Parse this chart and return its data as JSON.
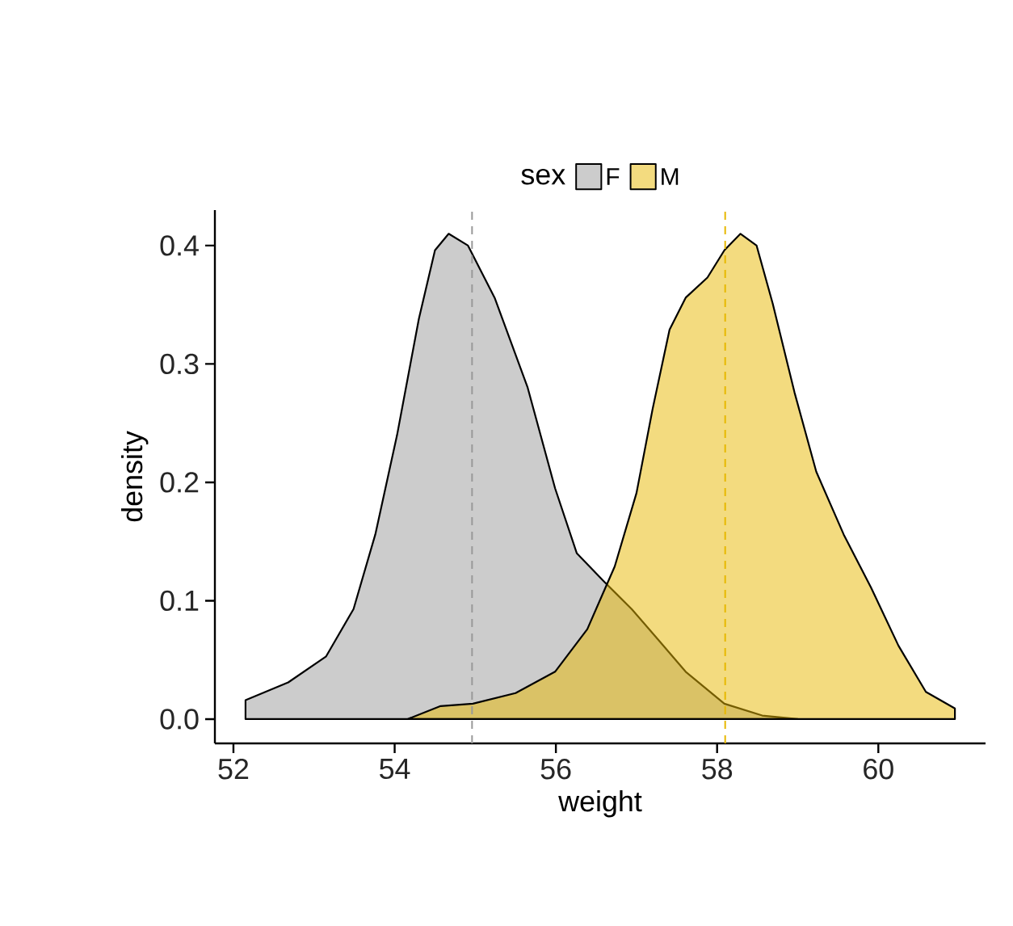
{
  "chart_data": {
    "type": "area",
    "xlabel": "weight",
    "ylabel": "density",
    "legend_title": "sex",
    "legend": "top",
    "xlim": [
      51.77,
      61.33
    ],
    "ylim": [
      -0.0205,
      0.43
    ],
    "xticks": [
      52,
      54,
      56,
      58,
      60
    ],
    "yticks": [
      {
        "value": 0,
        "label": "0.0"
      },
      {
        "value": 0.1,
        "label": "0.1"
      },
      {
        "value": 0.2,
        "label": "0.2"
      },
      {
        "value": 0.3,
        "label": "0.3"
      },
      {
        "value": 0.4,
        "label": "0.4"
      }
    ],
    "series": [
      {
        "name": "F",
        "color": "#999999",
        "x": [
          52.15,
          52.68,
          53.15,
          53.49,
          53.76,
          54.03,
          54.3,
          54.5,
          54.67,
          54.91,
          55.24,
          55.65,
          55.99,
          56.26,
          56.6,
          56.94,
          57.27,
          57.61,
          58.09,
          58.56,
          59.0
        ],
        "values": [
          0.016,
          0.031,
          0.053,
          0.093,
          0.156,
          0.24,
          0.338,
          0.396,
          0.41,
          0.4,
          0.356,
          0.28,
          0.195,
          0.14,
          0.116,
          0.093,
          0.067,
          0.04,
          0.013,
          0.003,
          0.0
        ]
      },
      {
        "name": "M",
        "color": "#E7B800",
        "x": [
          54.16,
          54.57,
          54.97,
          55.5,
          55.99,
          56.39,
          56.73,
          57.0,
          57.2,
          57.41,
          57.61,
          57.88,
          58.09,
          58.29,
          58.49,
          58.69,
          58.96,
          59.23,
          59.57,
          59.91,
          60.25,
          60.59,
          60.95
        ],
        "values": [
          0.0,
          0.011,
          0.013,
          0.022,
          0.04,
          0.076,
          0.129,
          0.191,
          0.262,
          0.329,
          0.356,
          0.373,
          0.396,
          0.41,
          0.4,
          0.351,
          0.276,
          0.209,
          0.156,
          0.111,
          0.062,
          0.023,
          0.009
        ]
      }
    ],
    "ref_lines": [
      {
        "axis": "x",
        "value": 54.96,
        "color": "#999999",
        "line_style": "dashed"
      },
      {
        "axis": "x",
        "value": 58.1,
        "color": "#E7B800",
        "line_style": "dashed"
      }
    ]
  }
}
